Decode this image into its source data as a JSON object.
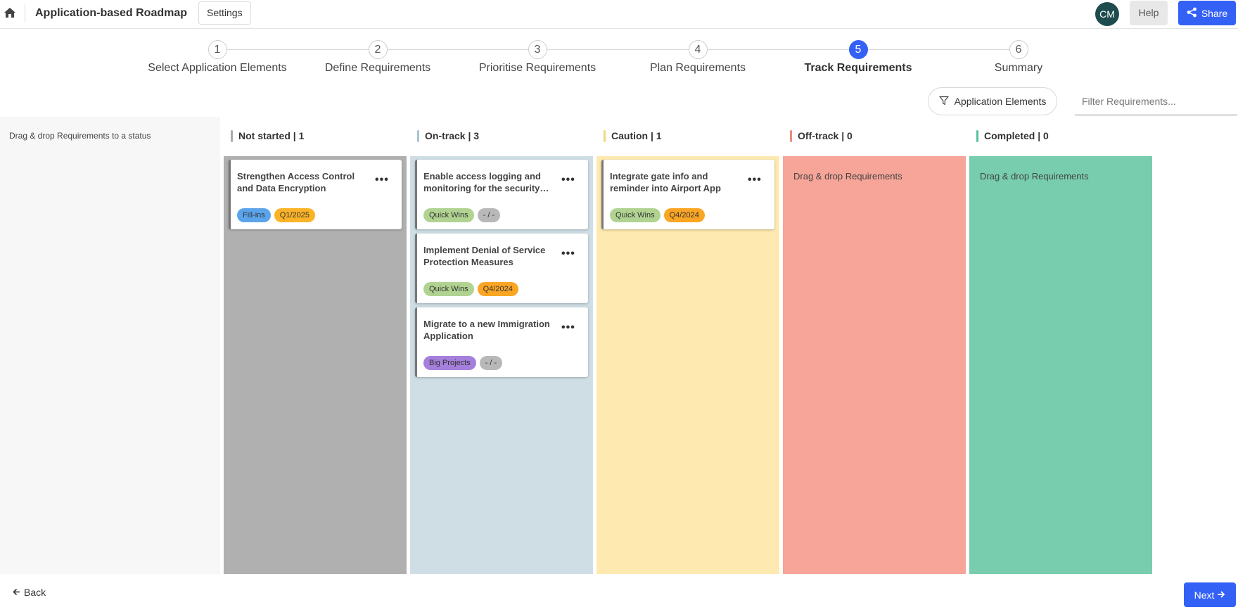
{
  "header": {
    "title": "Application-based Roadmap",
    "settings_label": "Settings",
    "avatar_initials": "CM",
    "help_label": "Help",
    "share_label": "Share"
  },
  "stepper": {
    "active_step": 5,
    "steps": [
      {
        "num": "1",
        "label": "Select Application Elements"
      },
      {
        "num": "2",
        "label": "Define Requirements"
      },
      {
        "num": "3",
        "label": "Prioritise Requirements"
      },
      {
        "num": "4",
        "label": "Plan Requirements"
      },
      {
        "num": "5",
        "label": "Track Requirements"
      },
      {
        "num": "6",
        "label": "Summary"
      }
    ]
  },
  "filters": {
    "elements_label": "Application Elements",
    "search_placeholder": "Filter Requirements..."
  },
  "left_panel": {
    "hint": "Drag & drop Requirements to a status"
  },
  "board": {
    "drop_hint": "Drag & drop Requirements",
    "columns": [
      {
        "title": "Not started | 1",
        "accent": "#aaaaaa",
        "background": "#b0b0b0",
        "cards": [
          {
            "title": "Strengthen Access Control and Data Encryption",
            "tags": [
              "Fill-ins",
              "Q1/2025"
            ]
          }
        ]
      },
      {
        "title": "On-track | 3",
        "accent": "#aac4d0",
        "background": "#cfdee5",
        "cards": [
          {
            "title": "Enable access logging and monitoring for the security…",
            "tags": [
              "Quick Wins",
              "- / -"
            ]
          },
          {
            "title": "Implement Denial of Service Protection Measures",
            "tags": [
              "Quick Wins",
              "Q4/2024"
            ]
          },
          {
            "title": "Migrate to a new Immigration Application",
            "tags": [
              "Big Projects",
              "- / -"
            ]
          }
        ]
      },
      {
        "title": "Caution | 1",
        "accent": "#f5d67a",
        "background": "#feeab0",
        "cards": [
          {
            "title": "Integrate gate info and reminder into Airport App",
            "tags": [
              "Quick Wins",
              "Q4/2024"
            ]
          }
        ]
      },
      {
        "title": "Off-track | 0",
        "accent": "#f08a7e",
        "background": "#f6a598",
        "cards": []
      },
      {
        "title": "Completed | 0",
        "accent": "#5cc19d",
        "background": "#77cdad",
        "cards": []
      }
    ],
    "tag_colors": {
      "Fill-ins": "#5ba4ec",
      "Quick Wins": "#b1d391",
      "Big Projects": "#a57fdc",
      "Q1/2025": "#fbb327",
      "Q4/2024": "#fba524",
      "- / -": "#b8b8b8"
    }
  },
  "footer": {
    "back_label": "Back",
    "next_label": "Next"
  }
}
